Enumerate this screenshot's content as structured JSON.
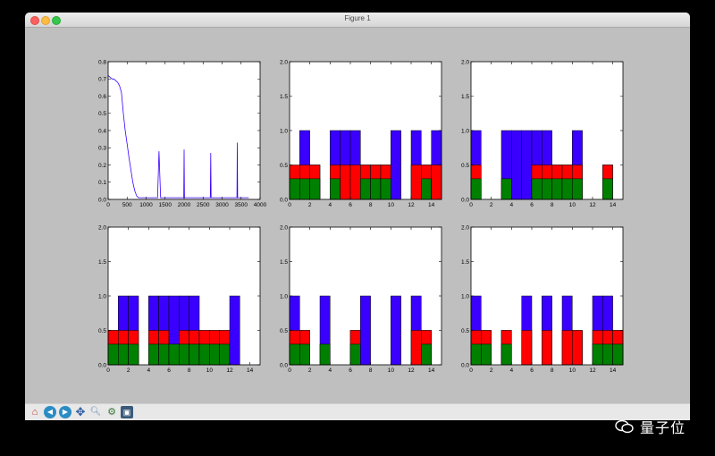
{
  "window": {
    "title": "Figure 1"
  },
  "toolbar": {
    "buttons": [
      {
        "name": "home-button",
        "icon": "home-icon"
      },
      {
        "name": "back-button",
        "icon": "back-arrow-icon"
      },
      {
        "name": "forward-button",
        "icon": "forward-arrow-icon"
      },
      {
        "name": "pan-button",
        "icon": "move-icon"
      },
      {
        "name": "zoom-button",
        "icon": "magnifier-icon"
      },
      {
        "name": "subplots-button",
        "icon": "subplots-icon"
      },
      {
        "name": "save-button",
        "icon": "floppy-disk-icon"
      }
    ]
  },
  "watermark": {
    "text": "量子位"
  },
  "colors": {
    "blue": "#3a00ff",
    "red": "#ff0000",
    "green": "#008000",
    "figure_bg": "#bfbfbf"
  },
  "chart_data": [
    {
      "type": "line",
      "series": [
        {
          "name": "",
          "color": "#3a00ff"
        }
      ],
      "x": [
        0,
        50,
        100,
        150,
        200,
        250,
        300,
        350,
        400,
        450,
        500,
        550,
        600,
        650,
        700,
        750,
        800,
        850,
        900,
        950,
        1000,
        1100,
        1200,
        1300,
        1340,
        1380,
        1500,
        1700,
        1990,
        2000,
        2010,
        2200,
        2500,
        2690,
        2700,
        2710,
        3000,
        3300,
        3390,
        3400,
        3410,
        3500,
        3700
      ],
      "y": [
        0.72,
        0.71,
        0.7,
        0.7,
        0.69,
        0.68,
        0.66,
        0.62,
        0.5,
        0.4,
        0.32,
        0.24,
        0.17,
        0.1,
        0.05,
        0.02,
        0.01,
        0.01,
        0.01,
        0.01,
        0.01,
        0.01,
        0.01,
        0.01,
        0.28,
        0.01,
        0.01,
        0.01,
        0.01,
        0.29,
        0.01,
        0.01,
        0.01,
        0.01,
        0.27,
        0.01,
        0.01,
        0.01,
        0.01,
        0.33,
        0.01,
        0.01,
        0.01
      ],
      "xlim": [
        0,
        4000
      ],
      "ylim": [
        0,
        0.8
      ],
      "xticks": [
        "0",
        "500",
        "1000",
        "1500",
        "2000",
        "2500",
        "3000",
        "3500",
        "4000"
      ],
      "yticks": [
        "0.0",
        "0.1",
        "0.2",
        "0.3",
        "0.4",
        "0.5",
        "0.6",
        "0.7",
        "0.8"
      ]
    },
    {
      "type": "bar",
      "categories": [
        0,
        1,
        2,
        3,
        4,
        5,
        6,
        7,
        8,
        9,
        10,
        11,
        12,
        13,
        14
      ],
      "series": [
        {
          "name": "",
          "color": "#3a00ff",
          "values": [
            0,
            1,
            0.5,
            0,
            1,
            1,
            1,
            0.5,
            0.5,
            0.5,
            1,
            0,
            1,
            0.5,
            1
          ]
        },
        {
          "name": "",
          "color": "#ff0000",
          "values": [
            0.5,
            0.5,
            0.5,
            0,
            0.5,
            0.5,
            0.5,
            0.5,
            0.5,
            0.5,
            0,
            0,
            0.5,
            0.5,
            0.5
          ]
        },
        {
          "name": "",
          "color": "#008000",
          "values": [
            0.3,
            0.3,
            0.3,
            0,
            0.3,
            0,
            0,
            0.3,
            0.3,
            0.3,
            0,
            0,
            0,
            0.3,
            0
          ]
        }
      ],
      "xlim": [
        0,
        15
      ],
      "ylim": [
        0,
        2
      ],
      "xticks": [
        "0",
        "2",
        "4",
        "6",
        "8",
        "10",
        "12",
        "14"
      ],
      "yticks": [
        "0.0",
        "0.5",
        "1.0",
        "1.5",
        "2.0"
      ]
    },
    {
      "type": "bar",
      "categories": [
        0,
        1,
        2,
        3,
        4,
        5,
        6,
        7,
        8,
        9,
        10,
        11,
        12,
        13,
        14
      ],
      "series": [
        {
          "name": "",
          "color": "#3a00ff",
          "values": [
            1,
            0,
            0,
            1,
            1,
            1,
            1,
            1,
            0.5,
            0.5,
            1,
            0,
            0,
            0.5,
            0
          ]
        },
        {
          "name": "",
          "color": "#ff0000",
          "values": [
            0.5,
            0,
            0,
            0,
            0,
            0,
            0.5,
            0.5,
            0.5,
            0.5,
            0.5,
            0,
            0,
            0.5,
            0
          ]
        },
        {
          "name": "",
          "color": "#008000",
          "values": [
            0.3,
            0,
            0,
            0.3,
            0,
            0,
            0.3,
            0.3,
            0.3,
            0.3,
            0.3,
            0,
            0,
            0.3,
            0
          ]
        }
      ],
      "xlim": [
        0,
        15
      ],
      "ylim": [
        0,
        2
      ],
      "xticks": [
        "0",
        "2",
        "4",
        "6",
        "8",
        "10",
        "12",
        "14"
      ],
      "yticks": [
        "0.0",
        "0.5",
        "1.0",
        "1.5",
        "2.0"
      ]
    },
    {
      "type": "bar",
      "categories": [
        0,
        1,
        2,
        3,
        4,
        5,
        6,
        7,
        8,
        9,
        10,
        11,
        12,
        13,
        14
      ],
      "series": [
        {
          "name": "",
          "color": "#3a00ff",
          "values": [
            0.5,
            1,
            1,
            0,
            1,
            1,
            1,
            1,
            1,
            0.5,
            0.5,
            0.5,
            1,
            0,
            0
          ]
        },
        {
          "name": "",
          "color": "#ff0000",
          "values": [
            0.5,
            0.5,
            0.5,
            0,
            0.5,
            0.5,
            0,
            0.5,
            0.5,
            0.5,
            0.5,
            0.5,
            0,
            0,
            0
          ]
        },
        {
          "name": "",
          "color": "#008000",
          "values": [
            0.3,
            0.3,
            0.3,
            0,
            0.3,
            0.3,
            0.3,
            0.3,
            0.3,
            0.3,
            0.3,
            0.3,
            0,
            0,
            0
          ]
        }
      ],
      "xlim": [
        0,
        15
      ],
      "ylim": [
        0,
        2
      ],
      "xticks": [
        "0",
        "2",
        "4",
        "6",
        "8",
        "10",
        "12",
        "14"
      ],
      "yticks": [
        "0.0",
        "0.5",
        "1.0",
        "1.5",
        "2.0"
      ]
    },
    {
      "type": "bar",
      "categories": [
        0,
        1,
        2,
        3,
        4,
        5,
        6,
        7,
        8,
        9,
        10,
        11,
        12,
        13,
        14
      ],
      "series": [
        {
          "name": "",
          "color": "#3a00ff",
          "values": [
            1,
            0.5,
            0,
            1,
            0,
            0,
            0.5,
            1,
            0,
            0,
            1,
            0,
            1,
            0.5,
            0
          ]
        },
        {
          "name": "",
          "color": "#ff0000",
          "values": [
            0.5,
            0.5,
            0,
            0,
            0,
            0,
            0.5,
            0,
            0,
            0,
            0,
            0,
            0.5,
            0.5,
            0
          ]
        },
        {
          "name": "",
          "color": "#008000",
          "values": [
            0.3,
            0.3,
            0,
            0.3,
            0,
            0,
            0.3,
            0,
            0,
            0,
            0,
            0,
            0,
            0.3,
            0
          ]
        }
      ],
      "xlim": [
        0,
        15
      ],
      "ylim": [
        0,
        2
      ],
      "xticks": [
        "0",
        "2",
        "4",
        "6",
        "8",
        "10",
        "12",
        "14"
      ],
      "yticks": [
        "0.0",
        "0.5",
        "1.0",
        "1.5",
        "2.0"
      ]
    },
    {
      "type": "bar",
      "categories": [
        0,
        1,
        2,
        3,
        4,
        5,
        6,
        7,
        8,
        9,
        10,
        11,
        12,
        13,
        14
      ],
      "series": [
        {
          "name": "",
          "color": "#3a00ff",
          "values": [
            1,
            0.5,
            0,
            0.5,
            0,
            1,
            0,
            1,
            0,
            1,
            0.5,
            0,
            1,
            1,
            0.5
          ]
        },
        {
          "name": "",
          "color": "#ff0000",
          "values": [
            0.5,
            0.5,
            0,
            0.5,
            0,
            0.5,
            0,
            0.5,
            0,
            0.5,
            0.5,
            0,
            0.5,
            0.5,
            0.5
          ]
        },
        {
          "name": "",
          "color": "#008000",
          "values": [
            0.3,
            0.3,
            0,
            0.3,
            0,
            0,
            0,
            0,
            0,
            0,
            0,
            0,
            0.3,
            0.3,
            0.3
          ]
        }
      ],
      "xlim": [
        0,
        15
      ],
      "ylim": [
        0,
        2
      ],
      "xticks": [
        "0",
        "2",
        "4",
        "6",
        "8",
        "10",
        "12",
        "14"
      ],
      "yticks": [
        "0.0",
        "0.5",
        "1.0",
        "1.5",
        "2.0"
      ]
    }
  ]
}
